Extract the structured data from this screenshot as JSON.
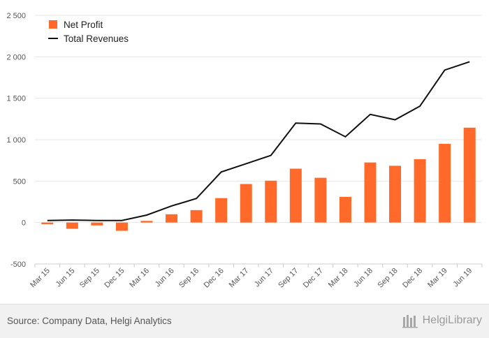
{
  "colors": {
    "bar": "#ff6a2a",
    "line": "#111111",
    "grid": "#e6e6e6",
    "axis_text": "#555555"
  },
  "chart_data": {
    "type": "bar",
    "categories": [
      "Mar 15",
      "Jun 15",
      "Sep 15",
      "Dec 15",
      "Mar 16",
      "Jun 16",
      "Sep 16",
      "Dec 16",
      "Mar 17",
      "Jun 17",
      "Sep 17",
      "Dec 17",
      "Mar 18",
      "Jun 18",
      "Sep 18",
      "Dec 18",
      "Mar 19",
      "Jun 19"
    ],
    "series": [
      {
        "name": "Net Profit",
        "kind": "bar",
        "values": [
          -20,
          -75,
          -35,
          -100,
          20,
          100,
          150,
          295,
          465,
          505,
          650,
          540,
          310,
          725,
          685,
          765,
          950,
          1145
        ]
      },
      {
        "name": "Total Revenues",
        "kind": "line",
        "values": [
          25,
          30,
          25,
          25,
          90,
          200,
          290,
          610,
          710,
          810,
          1200,
          1190,
          1035,
          1305,
          1240,
          1405,
          1840,
          1940
        ]
      }
    ],
    "ylim": [
      -500,
      2500
    ],
    "yticks": [
      -500,
      0,
      500,
      1000,
      1500,
      2000,
      2500
    ],
    "ytick_labels": [
      "-500",
      "0",
      "500",
      "1 000",
      "1 500",
      "2 000",
      "2 500"
    ],
    "legend_position": "top-left",
    "grid": true,
    "xlabel": "",
    "ylabel": ""
  },
  "footer": {
    "source": "Source: Company Data, Helgi Analytics",
    "brand": "HelgiLibrary"
  }
}
